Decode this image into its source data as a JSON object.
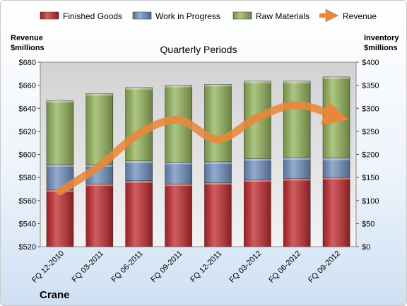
{
  "chart_data": {
    "type": "bar",
    "title": "Quarterly Periods",
    "company": "Crane",
    "categories": [
      "FQ 12-2010",
      "FQ 03-2011",
      "FQ 06-2011",
      "FQ 09-2011",
      "FQ 12-2011",
      "FQ 03-2012",
      "FQ 06-2012",
      "FQ 09-2012"
    ],
    "stacked": true,
    "series": [
      {
        "name": "Finished Goods",
        "color": "#c0282d",
        "axis": "right",
        "values": [
          123,
          136,
          143,
          136,
          139,
          145,
          148,
          150
        ]
      },
      {
        "name": "Work in Progress",
        "color": "#6f8fbf",
        "axis": "right",
        "values": [
          55,
          42,
          43,
          47,
          45,
          46,
          45,
          42
        ]
      },
      {
        "name": "Raw Materials",
        "color": "#93b35a",
        "axis": "right",
        "values": [
          139,
          154,
          159,
          167,
          168,
          168,
          166,
          176
        ]
      }
    ],
    "line_series": {
      "name": "Revenue",
      "color": "#e8873a",
      "axis": "left",
      "values": [
        568,
        590,
        618,
        630,
        613,
        632,
        643,
        633
      ]
    },
    "left_axis": {
      "label": "Revenue\n$millions",
      "min": 520,
      "max": 680,
      "step": 20,
      "prefix": "$"
    },
    "right_axis": {
      "label": "Inventory\n$millions",
      "min": 0,
      "max": 400,
      "step": 50,
      "prefix": "$"
    },
    "legend_position": "top",
    "grid": false
  }
}
